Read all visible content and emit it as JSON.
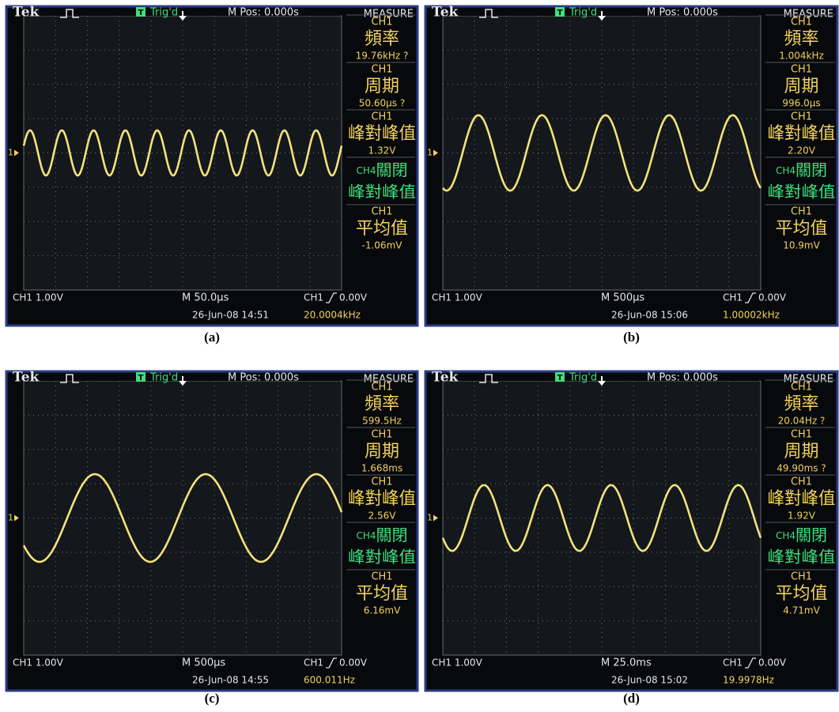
{
  "panels": [
    {
      "header": {
        "brand": "Tek",
        "trigger_icon": "T",
        "trigger": "Trig'd",
        "position": "M Pos: 0.000s",
        "menu": "MEASURE"
      },
      "channel_marker": "1",
      "measurements": [
        {
          "source": "CH1",
          "name": "頻率",
          "reading": "19.76kHz ?"
        },
        {
          "source": "CH1",
          "name": "周期",
          "reading": "50.60μs ?"
        },
        {
          "source": "CH1",
          "name": "峰對峰值",
          "reading": "1.32V"
        },
        {
          "source": "CH4",
          "state": "關閉",
          "name": "峰對峰值"
        },
        {
          "source": "CH1",
          "name": "平均值",
          "reading": "-1.06mV"
        }
      ],
      "footer": {
        "channel": "CH1 1.00V",
        "timebase": "M 50.0μs",
        "trigger": "CH1",
        "trigger_level": "0.00V",
        "date": "26-Jun-08 14:51",
        "frequency": "20.0004kHz"
      },
      "caption": "(a)"
    },
    {
      "header": {
        "brand": "Tek",
        "trigger_icon": "T",
        "trigger": "Trig'd",
        "position": "M Pos: 0.000s",
        "menu": "MEASURE"
      },
      "channel_marker": "1",
      "measurements": [
        {
          "source": "CH1",
          "name": "頻率",
          "reading": "1.004kHz"
        },
        {
          "source": "CH1",
          "name": "周期",
          "reading": "996.0μs"
        },
        {
          "source": "CH1",
          "name": "峰對峰值",
          "reading": "2.20V"
        },
        {
          "source": "CH4",
          "state": "關閉",
          "name": "峰對峰值"
        },
        {
          "source": "CH1",
          "name": "平均值",
          "reading": "10.9mV"
        }
      ],
      "footer": {
        "channel": "CH1 1.00V",
        "timebase": "M 500μs",
        "trigger": "CH1",
        "trigger_level": "0.00V",
        "date": "26-Jun-08 15:06",
        "frequency": "1.00002kHz"
      },
      "caption": "(b)"
    },
    {
      "header": {
        "brand": "Tek",
        "trigger_icon": "T",
        "trigger": "Trig'd",
        "position": "M Pos: 0.000s",
        "menu": "MEASURE"
      },
      "channel_marker": "1",
      "measurements": [
        {
          "source": "CH1",
          "name": "頻率",
          "reading": "599.5Hz"
        },
        {
          "source": "CH1",
          "name": "周期",
          "reading": "1.668ms"
        },
        {
          "source": "CH1",
          "name": "峰對峰值",
          "reading": "2.56V"
        },
        {
          "source": "CH4",
          "state": "關閉",
          "name": "峰對峰值"
        },
        {
          "source": "CH1",
          "name": "平均值",
          "reading": "6.16mV"
        }
      ],
      "footer": {
        "channel": "CH1 1.00V",
        "timebase": "M 500μs",
        "trigger": "CH1",
        "trigger_level": "0.00V",
        "date": "26-Jun-08 14:55",
        "frequency": "600.011Hz"
      },
      "caption": "(c)"
    },
    {
      "header": {
        "brand": "Tek",
        "trigger_icon": "T",
        "trigger": "Trig'd",
        "position": "M Pos: 0.000s",
        "menu": "MEASURE"
      },
      "channel_marker": "1",
      "measurements": [
        {
          "source": "CH1",
          "name": "頻率",
          "reading": "20.04Hz ?"
        },
        {
          "source": "CH1",
          "name": "周期",
          "reading": "49.90ms ?"
        },
        {
          "source": "CH1",
          "name": "峰對峰值",
          "reading": "1.92V"
        },
        {
          "source": "CH4",
          "state": "關閉",
          "name": "峰對峰值"
        },
        {
          "source": "CH1",
          "name": "平均值",
          "reading": "4.71mV"
        }
      ],
      "footer": {
        "channel": "CH1 1.00V",
        "timebase": "M 25.0ms",
        "trigger": "CH1",
        "trigger_level": "0.00V",
        "date": "26-Jun-08 15:02",
        "frequency": "19.9978Hz"
      },
      "caption": "(d)"
    }
  ]
}
